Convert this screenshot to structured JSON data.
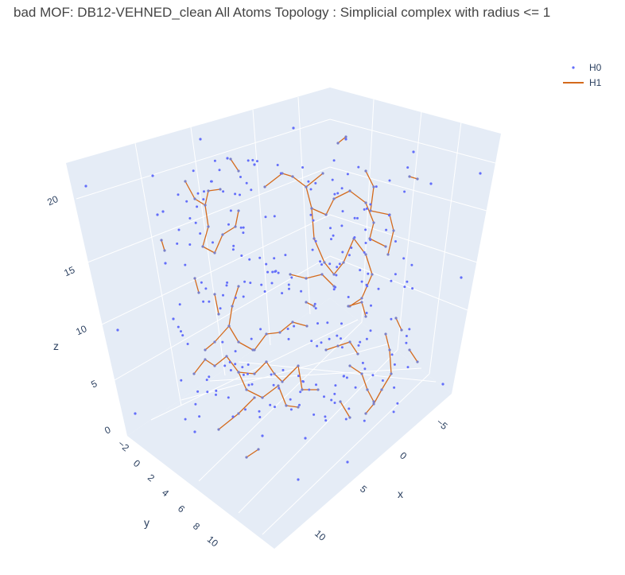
{
  "chart_data": {
    "type": "scatter3d",
    "title": "bad MOF: DB12-VEHNED_clean All Atoms Topology : Simplicial complex with radius <= 1",
    "axes": {
      "x": {
        "title": "x",
        "ticks": [
          "−5",
          "0",
          "5",
          "10"
        ],
        "range": [
          -7,
          12
        ]
      },
      "y": {
        "title": "y",
        "ticks": [
          "−2",
          "0",
          "2",
          "4",
          "6",
          "8",
          "10"
        ],
        "range": [
          -3,
          11
        ]
      },
      "z": {
        "title": "z",
        "ticks": [
          "0",
          "5",
          "10",
          "15",
          "20"
        ],
        "range": [
          -1,
          22
        ]
      }
    },
    "legend": {
      "placement": "top-right",
      "entries": [
        "H0",
        "H1"
      ]
    },
    "colors": {
      "H0": "#636efa",
      "H1": "#d46a1c",
      "pane": "#e5ecf6",
      "grid": "#ffffff"
    },
    "series": [
      {
        "name": "H0",
        "mode": "markers",
        "points_xy_screen_note": "",
        "count": 300
      },
      {
        "name": "H1",
        "mode": "lines"
      }
    ]
  }
}
